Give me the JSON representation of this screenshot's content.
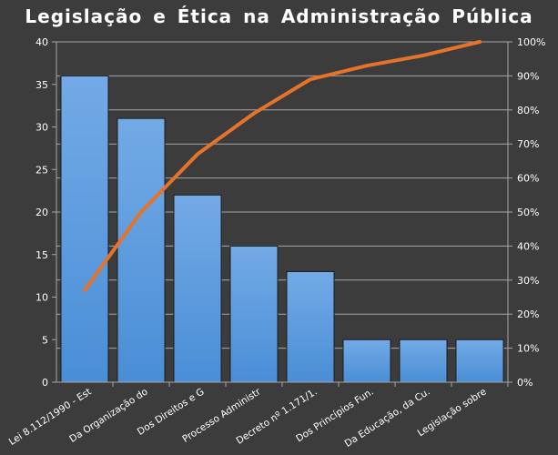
{
  "chart_data": {
    "type": "bar",
    "title": "Legislação  e Ética na Administração  Pública",
    "categories": [
      "Lei 8.112/1990 - Est",
      "Da Organização do",
      "Dos Direitos e G",
      "Processo Administr",
      "Decreto nº 1.171/1.",
      "Dos Princípios Fun.",
      "Da Educação, da Cu.",
      "Legislação sobre"
    ],
    "series": [
      {
        "type": "bar",
        "axis": "left",
        "values": [
          36,
          31,
          22,
          16,
          13,
          5,
          5,
          5
        ]
      },
      {
        "type": "line",
        "axis": "right",
        "values": [
          27,
          50,
          67,
          79,
          89,
          93,
          96,
          100
        ]
      }
    ],
    "y_left": {
      "lim": [
        0,
        40
      ],
      "ticks": [
        "0",
        "5",
        "10",
        "15",
        "20",
        "25",
        "30",
        "35",
        "40"
      ]
    },
    "y_right": {
      "lim": [
        0,
        100
      ],
      "ticks": [
        "0%",
        "10%",
        "20%",
        "30%",
        "40%",
        "50%",
        "60%",
        "70%",
        "80%",
        "90%",
        "100%"
      ]
    },
    "grid": true,
    "legend": "none",
    "colors": {
      "background": "#3c3c3c",
      "bar": "#4a8ed6",
      "bar_light": "#73aae6",
      "bar_outline": "#1b1b1b",
      "line": "#e5732a",
      "grid": "#a6a6a6",
      "text": "#ffffff"
    }
  }
}
